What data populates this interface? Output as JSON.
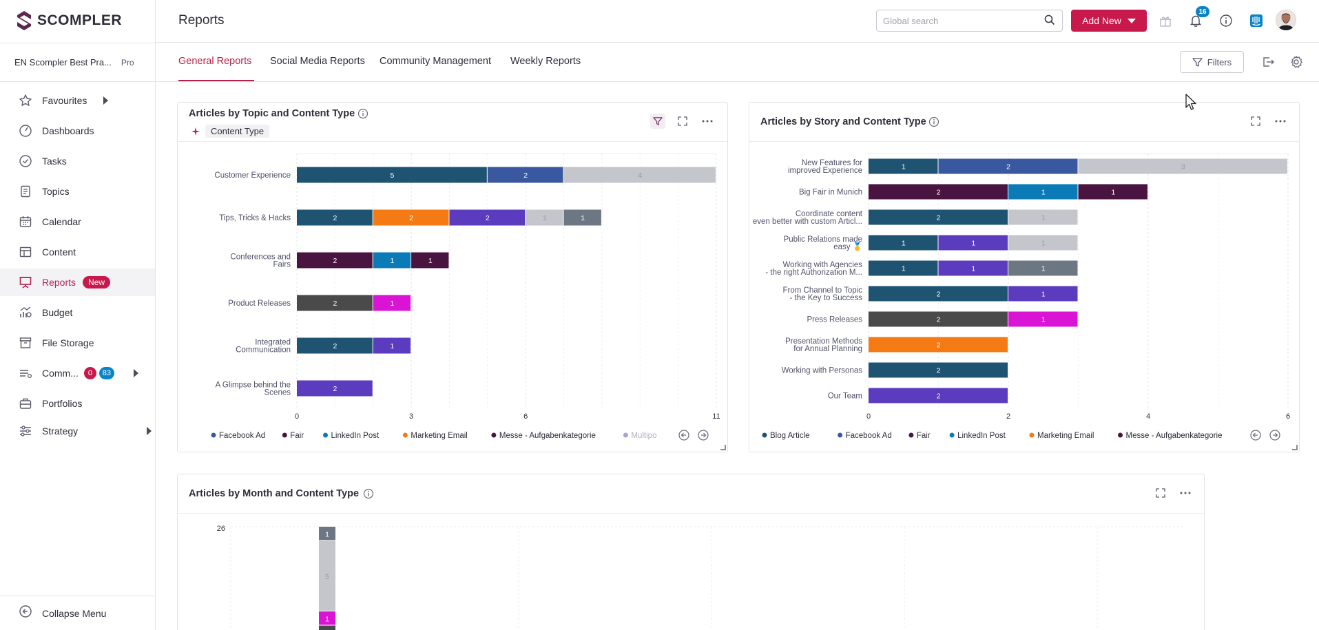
{
  "brand": {
    "name": "SCOMPLER",
    "accent": "#c8184c"
  },
  "workspace": {
    "name": "EN Scompler Best Pra...",
    "plan": "Pro"
  },
  "sidebar": {
    "items": [
      {
        "label": "Favourites",
        "icon": "star-icon"
      },
      {
        "label": "Dashboards",
        "icon": "gauge-icon"
      },
      {
        "label": "Tasks",
        "icon": "check-circle-icon"
      },
      {
        "label": "Topics",
        "icon": "document-icon"
      },
      {
        "label": "Calendar",
        "icon": "calendar-icon"
      },
      {
        "label": "Content",
        "icon": "table-icon"
      },
      {
        "label": "Reports",
        "icon": "presentation-icon",
        "badge": "New"
      },
      {
        "label": "Budget",
        "icon": "budget-icon"
      },
      {
        "label": "File Storage",
        "icon": "archive-icon"
      },
      {
        "label": "Comm...",
        "icon": "community-icon",
        "badge_red": "0",
        "badge_blue": "83"
      },
      {
        "label": "Portfolios",
        "icon": "briefcase-icon"
      },
      {
        "label": "Strategy",
        "icon": "sliders-icon"
      }
    ],
    "collapse_label": "Collapse Menu"
  },
  "header": {
    "title": "Reports",
    "search_placeholder": "Global search",
    "add_new_label": "Add New",
    "notification_count": "16"
  },
  "tabs": [
    "General Reports",
    "Social Media Reports",
    "Community Management",
    "Weekly Reports"
  ],
  "filters_label": "Filters",
  "cards": {
    "topic": {
      "title": "Articles by Topic and Content Type",
      "filter_chip": "Content Type",
      "legend": [
        "Facebook Ad",
        "Fair",
        "LinkedIn Post",
        "Marketing Email",
        "Messe - Aufgabenkategorie",
        "Multipo"
      ]
    },
    "story": {
      "title": "Articles by Story and Content Type",
      "legend": [
        "Blog Article",
        "Facebook Ad",
        "Fair",
        "LinkedIn Post",
        "Marketing Email",
        "Messe - Aufgabenkategorie"
      ]
    },
    "month": {
      "title": "Articles by Month and Content Type"
    }
  },
  "colors": {
    "Blog Article": "#1e5472",
    "Facebook Ad": "#3a58a0",
    "Fair": "#4a1440",
    "LinkedIn Post": "#0b7bb8",
    "Marketing Email": "#f47a14",
    "Messe - Aufgabenkategorie": "#4a1440",
    "Multipo": "#5b3bbe",
    "Purple": "#5b3bbe",
    "Magenta": "#d914d4",
    "Gray": "#c4c6cc",
    "Slate": "#6d7784",
    "Charcoal": "#4a4a4a"
  },
  "chart_data": [
    {
      "type": "bar",
      "orientation": "horizontal",
      "stacked": true,
      "title": "Articles by Topic and Content Type",
      "categories": [
        "Customer Experience",
        "Tips, Tricks & Hacks",
        "Conferences and Fairs",
        "Product Releases",
        "Integrated Communication",
        "A Glimpse behind the Scenes"
      ],
      "segments": [
        [
          {
            "v": 5,
            "c": "#1e5472"
          },
          {
            "v": 2,
            "c": "#3a58a0"
          },
          {
            "v": 4,
            "c": "#c4c6cc"
          }
        ],
        [
          {
            "v": 2,
            "c": "#1e5472"
          },
          {
            "v": 2,
            "c": "#f47a14"
          },
          {
            "v": 2,
            "c": "#5b3bbe"
          },
          {
            "v": 1,
            "c": "#c4c6cc"
          },
          {
            "v": 1,
            "c": "#6d7784"
          }
        ],
        [
          {
            "v": 2,
            "c": "#4a1440"
          },
          {
            "v": 1,
            "c": "#0b7bb8"
          },
          {
            "v": 1,
            "c": "#4a1440"
          }
        ],
        [
          {
            "v": 2,
            "c": "#4a4a4a"
          },
          {
            "v": 1,
            "c": "#d914d4"
          }
        ],
        [
          {
            "v": 2,
            "c": "#1e5472"
          },
          {
            "v": 1,
            "c": "#5b3bbe"
          }
        ],
        [
          {
            "v": 2,
            "c": "#5b3bbe"
          }
        ]
      ],
      "xticks": [
        "0",
        "3",
        "6",
        "11"
      ],
      "xlim": [
        0,
        11
      ]
    },
    {
      "type": "bar",
      "orientation": "horizontal",
      "stacked": true,
      "title": "Articles by Story and Content Type",
      "categories": [
        "New Features for improved Experience",
        "Big Fair in Munich",
        "Coordinate content even better with custom Articl...",
        "Public Relations made easy 🥇",
        "Working with Agencies - the right Authorization M...",
        "From Channel to Topic - the Key to Success",
        "Press Releases",
        "Presentation Methods for Annual Planning",
        "Working with Personas",
        "Our Team"
      ],
      "segments": [
        [
          {
            "v": 1,
            "c": "#1e5472"
          },
          {
            "v": 2,
            "c": "#3a58a0"
          },
          {
            "v": 3,
            "c": "#c4c6cc"
          }
        ],
        [
          {
            "v": 2,
            "c": "#4a1440"
          },
          {
            "v": 1,
            "c": "#0b7bb8"
          },
          {
            "v": 1,
            "c": "#4a1440"
          }
        ],
        [
          {
            "v": 2,
            "c": "#1e5472"
          },
          {
            "v": 1,
            "c": "#c4c6cc"
          }
        ],
        [
          {
            "v": 1,
            "c": "#1e5472"
          },
          {
            "v": 1,
            "c": "#5b3bbe"
          },
          {
            "v": 1,
            "c": "#c4c6cc"
          }
        ],
        [
          {
            "v": 1,
            "c": "#1e5472"
          },
          {
            "v": 1,
            "c": "#5b3bbe"
          },
          {
            "v": 1,
            "c": "#6d7784"
          }
        ],
        [
          {
            "v": 2,
            "c": "#1e5472"
          },
          {
            "v": 1,
            "c": "#5b3bbe"
          }
        ],
        [
          {
            "v": 2,
            "c": "#4a4a4a"
          },
          {
            "v": 1,
            "c": "#d914d4"
          }
        ],
        [
          {
            "v": 2,
            "c": "#f47a14"
          }
        ],
        [
          {
            "v": 2,
            "c": "#1e5472"
          }
        ],
        [
          {
            "v": 2,
            "c": "#5b3bbe"
          }
        ]
      ],
      "xticks": [
        "0",
        "2",
        "4",
        "6"
      ],
      "xlim": [
        0,
        6
      ]
    },
    {
      "type": "bar",
      "orientation": "vertical",
      "stacked": true,
      "title": "Articles by Month and Content Type",
      "ytick_top": "26",
      "visible_stack": [
        {
          "v": 1,
          "c": "#6d7784"
        },
        {
          "v": 5,
          "c": "#c4c6cc"
        },
        {
          "v": 1,
          "c": "#d914d4"
        }
      ],
      "ylim": [
        0,
        26
      ]
    }
  ]
}
